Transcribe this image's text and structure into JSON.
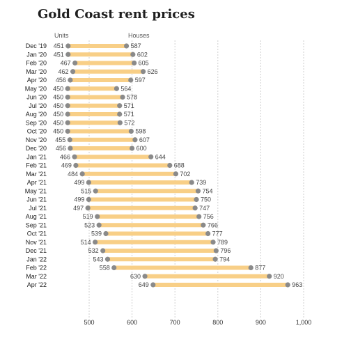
{
  "title": "Gold Coast rent prices",
  "legend": {
    "units": "Units",
    "houses": "Houses"
  },
  "colors": {
    "bar": "#f8cf87",
    "dot": "#8a8a8a",
    "grid": "#cfcfcf"
  },
  "chart_data": {
    "type": "dumbbell",
    "title": "Gold Coast rent prices",
    "xlim": [
      450,
      1000
    ],
    "xticks": [
      500,
      600,
      700,
      800,
      900,
      1000
    ],
    "xtick_labels": [
      "500",
      "600",
      "700",
      "800",
      "900",
      "1,000"
    ],
    "legend_position": "top",
    "grid": true,
    "categories": [
      "Dec '19",
      "Jan '20",
      "Feb '20",
      "Mar '20",
      "Apr '20",
      "May '20",
      "Jun '20",
      "Jul '20",
      "Aug '20",
      "Sep '20",
      "Oct '20",
      "Nov '20",
      "Dec '20",
      "Jan '21",
      "Feb '21",
      "Mar '21",
      "Apr '21",
      "May '21",
      "Jun '21",
      "Jul '21",
      "Aug '21",
      "Sep '21",
      "Oct '21",
      "Nov '21",
      "Dec '21",
      "Jan '22",
      "Feb '22",
      "Mar '22",
      "Apr '22"
    ],
    "series": [
      {
        "name": "Units",
        "values": [
          451,
          451,
          467,
          462,
          456,
          450,
          450,
          450,
          450,
          450,
          450,
          455,
          456,
          466,
          469,
          484,
          499,
          515,
          499,
          497,
          519,
          523,
          539,
          514,
          532,
          543,
          558,
          630,
          649
        ]
      },
      {
        "name": "Houses",
        "values": [
          587,
          602,
          605,
          626,
          597,
          564,
          578,
          571,
          571,
          572,
          598,
          607,
          600,
          644,
          688,
          702,
          739,
          754,
          750,
          747,
          756,
          766,
          777,
          789,
          796,
          794,
          877,
          920,
          963
        ]
      }
    ]
  }
}
